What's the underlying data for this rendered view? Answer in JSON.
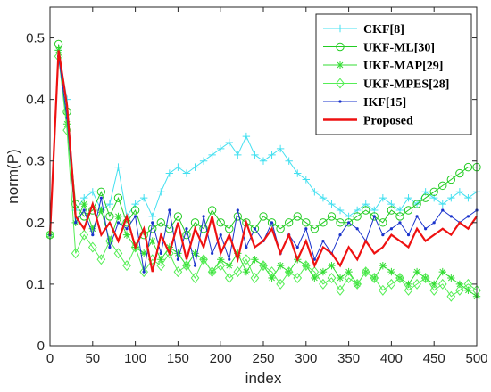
{
  "chart_data": {
    "type": "line",
    "xlabel": "index",
    "ylabel": "norm(P)",
    "xlim": [
      0,
      500
    ],
    "ylim": [
      0,
      0.55
    ],
    "xticks": [
      0,
      50,
      100,
      150,
      200,
      250,
      300,
      350,
      400,
      450,
      500
    ],
    "yticks": [
      0,
      0.1,
      0.2,
      0.3,
      0.4,
      0.5
    ],
    "ytick_labels": [
      "0",
      "0.1",
      "0.2",
      "0.3",
      "0.4",
      "0.5"
    ],
    "grid": false,
    "legend_position": "top-right",
    "x_sample_step": 10,
    "series": [
      {
        "name": "CKF[8]",
        "color": "#44e0f0",
        "marker": "plus",
        "values": [
          0.18,
          0.48,
          0.4,
          0.22,
          0.24,
          0.25,
          0.22,
          0.23,
          0.29,
          0.21,
          0.23,
          0.24,
          0.21,
          0.25,
          0.28,
          0.29,
          0.28,
          0.29,
          0.3,
          0.31,
          0.32,
          0.33,
          0.31,
          0.34,
          0.31,
          0.3,
          0.31,
          0.32,
          0.3,
          0.28,
          0.27,
          0.25,
          0.24,
          0.23,
          0.22,
          0.21,
          0.22,
          0.23,
          0.22,
          0.24,
          0.23,
          0.22,
          0.24,
          0.23,
          0.25,
          0.24,
          0.23,
          0.24,
          0.25,
          0.24,
          0.25
        ]
      },
      {
        "name": "UKF-ML[30]",
        "color": "#22cc22",
        "marker": "circle",
        "values": [
          0.18,
          0.49,
          0.38,
          0.23,
          0.21,
          0.22,
          0.25,
          0.21,
          0.24,
          0.2,
          0.22,
          0.18,
          0.19,
          0.2,
          0.19,
          0.21,
          0.18,
          0.2,
          0.19,
          0.22,
          0.2,
          0.19,
          0.21,
          0.2,
          0.19,
          0.21,
          0.2,
          0.19,
          0.2,
          0.21,
          0.2,
          0.19,
          0.2,
          0.21,
          0.2,
          0.2,
          0.21,
          0.22,
          0.21,
          0.2,
          0.22,
          0.21,
          0.22,
          0.23,
          0.24,
          0.25,
          0.26,
          0.27,
          0.28,
          0.29,
          0.29
        ]
      },
      {
        "name": "UKF-MAP[29]",
        "color": "#33dd33",
        "marker": "asterisk",
        "values": [
          0.18,
          0.48,
          0.36,
          0.2,
          0.23,
          0.19,
          0.22,
          0.17,
          0.21,
          0.18,
          0.16,
          0.15,
          0.17,
          0.14,
          0.16,
          0.15,
          0.13,
          0.15,
          0.14,
          0.12,
          0.14,
          0.13,
          0.15,
          0.12,
          0.14,
          0.13,
          0.11,
          0.13,
          0.12,
          0.14,
          0.13,
          0.11,
          0.12,
          0.13,
          0.11,
          0.12,
          0.1,
          0.12,
          0.11,
          0.13,
          0.12,
          0.11,
          0.1,
          0.12,
          0.11,
          0.1,
          0.12,
          0.11,
          0.1,
          0.09,
          0.08
        ]
      },
      {
        "name": "UKF-MPES[28]",
        "color": "#55ee55",
        "marker": "diamond",
        "values": [
          0.18,
          0.47,
          0.35,
          0.15,
          0.18,
          0.16,
          0.14,
          0.17,
          0.15,
          0.13,
          0.16,
          0.12,
          0.14,
          0.13,
          0.15,
          0.12,
          0.13,
          0.11,
          0.14,
          0.12,
          0.13,
          0.11,
          0.12,
          0.14,
          0.11,
          0.13,
          0.12,
          0.1,
          0.12,
          0.11,
          0.13,
          0.12,
          0.1,
          0.11,
          0.09,
          0.11,
          0.1,
          0.12,
          0.11,
          0.09,
          0.1,
          0.11,
          0.09,
          0.1,
          0.11,
          0.09,
          0.1,
          0.08,
          0.09,
          0.1,
          0.09
        ]
      },
      {
        "name": "IKF[15]",
        "color": "#1a33cc",
        "marker": "dot",
        "values": [
          0.18,
          0.47,
          0.37,
          0.2,
          0.22,
          0.18,
          0.24,
          0.16,
          0.2,
          0.19,
          0.21,
          0.12,
          0.2,
          0.15,
          0.22,
          0.14,
          0.19,
          0.13,
          0.21,
          0.15,
          0.18,
          0.14,
          0.22,
          0.16,
          0.19,
          0.17,
          0.2,
          0.15,
          0.18,
          0.16,
          0.19,
          0.14,
          0.17,
          0.15,
          0.18,
          0.2,
          0.19,
          0.17,
          0.21,
          0.18,
          0.19,
          0.2,
          0.18,
          0.21,
          0.19,
          0.2,
          0.22,
          0.21,
          0.2,
          0.21,
          0.22
        ]
      },
      {
        "name": "Proposed",
        "color": "#ee1111",
        "marker": "none",
        "values": [
          0.18,
          0.48,
          0.39,
          0.21,
          0.19,
          0.23,
          0.18,
          0.2,
          0.17,
          0.21,
          0.16,
          0.19,
          0.12,
          0.18,
          0.15,
          0.2,
          0.14,
          0.19,
          0.16,
          0.21,
          0.15,
          0.18,
          0.14,
          0.2,
          0.16,
          0.17,
          0.19,
          0.15,
          0.18,
          0.14,
          0.17,
          0.13,
          0.16,
          0.15,
          0.13,
          0.16,
          0.14,
          0.17,
          0.15,
          0.16,
          0.18,
          0.17,
          0.16,
          0.19,
          0.17,
          0.18,
          0.19,
          0.18,
          0.2,
          0.19,
          0.21
        ]
      }
    ]
  }
}
